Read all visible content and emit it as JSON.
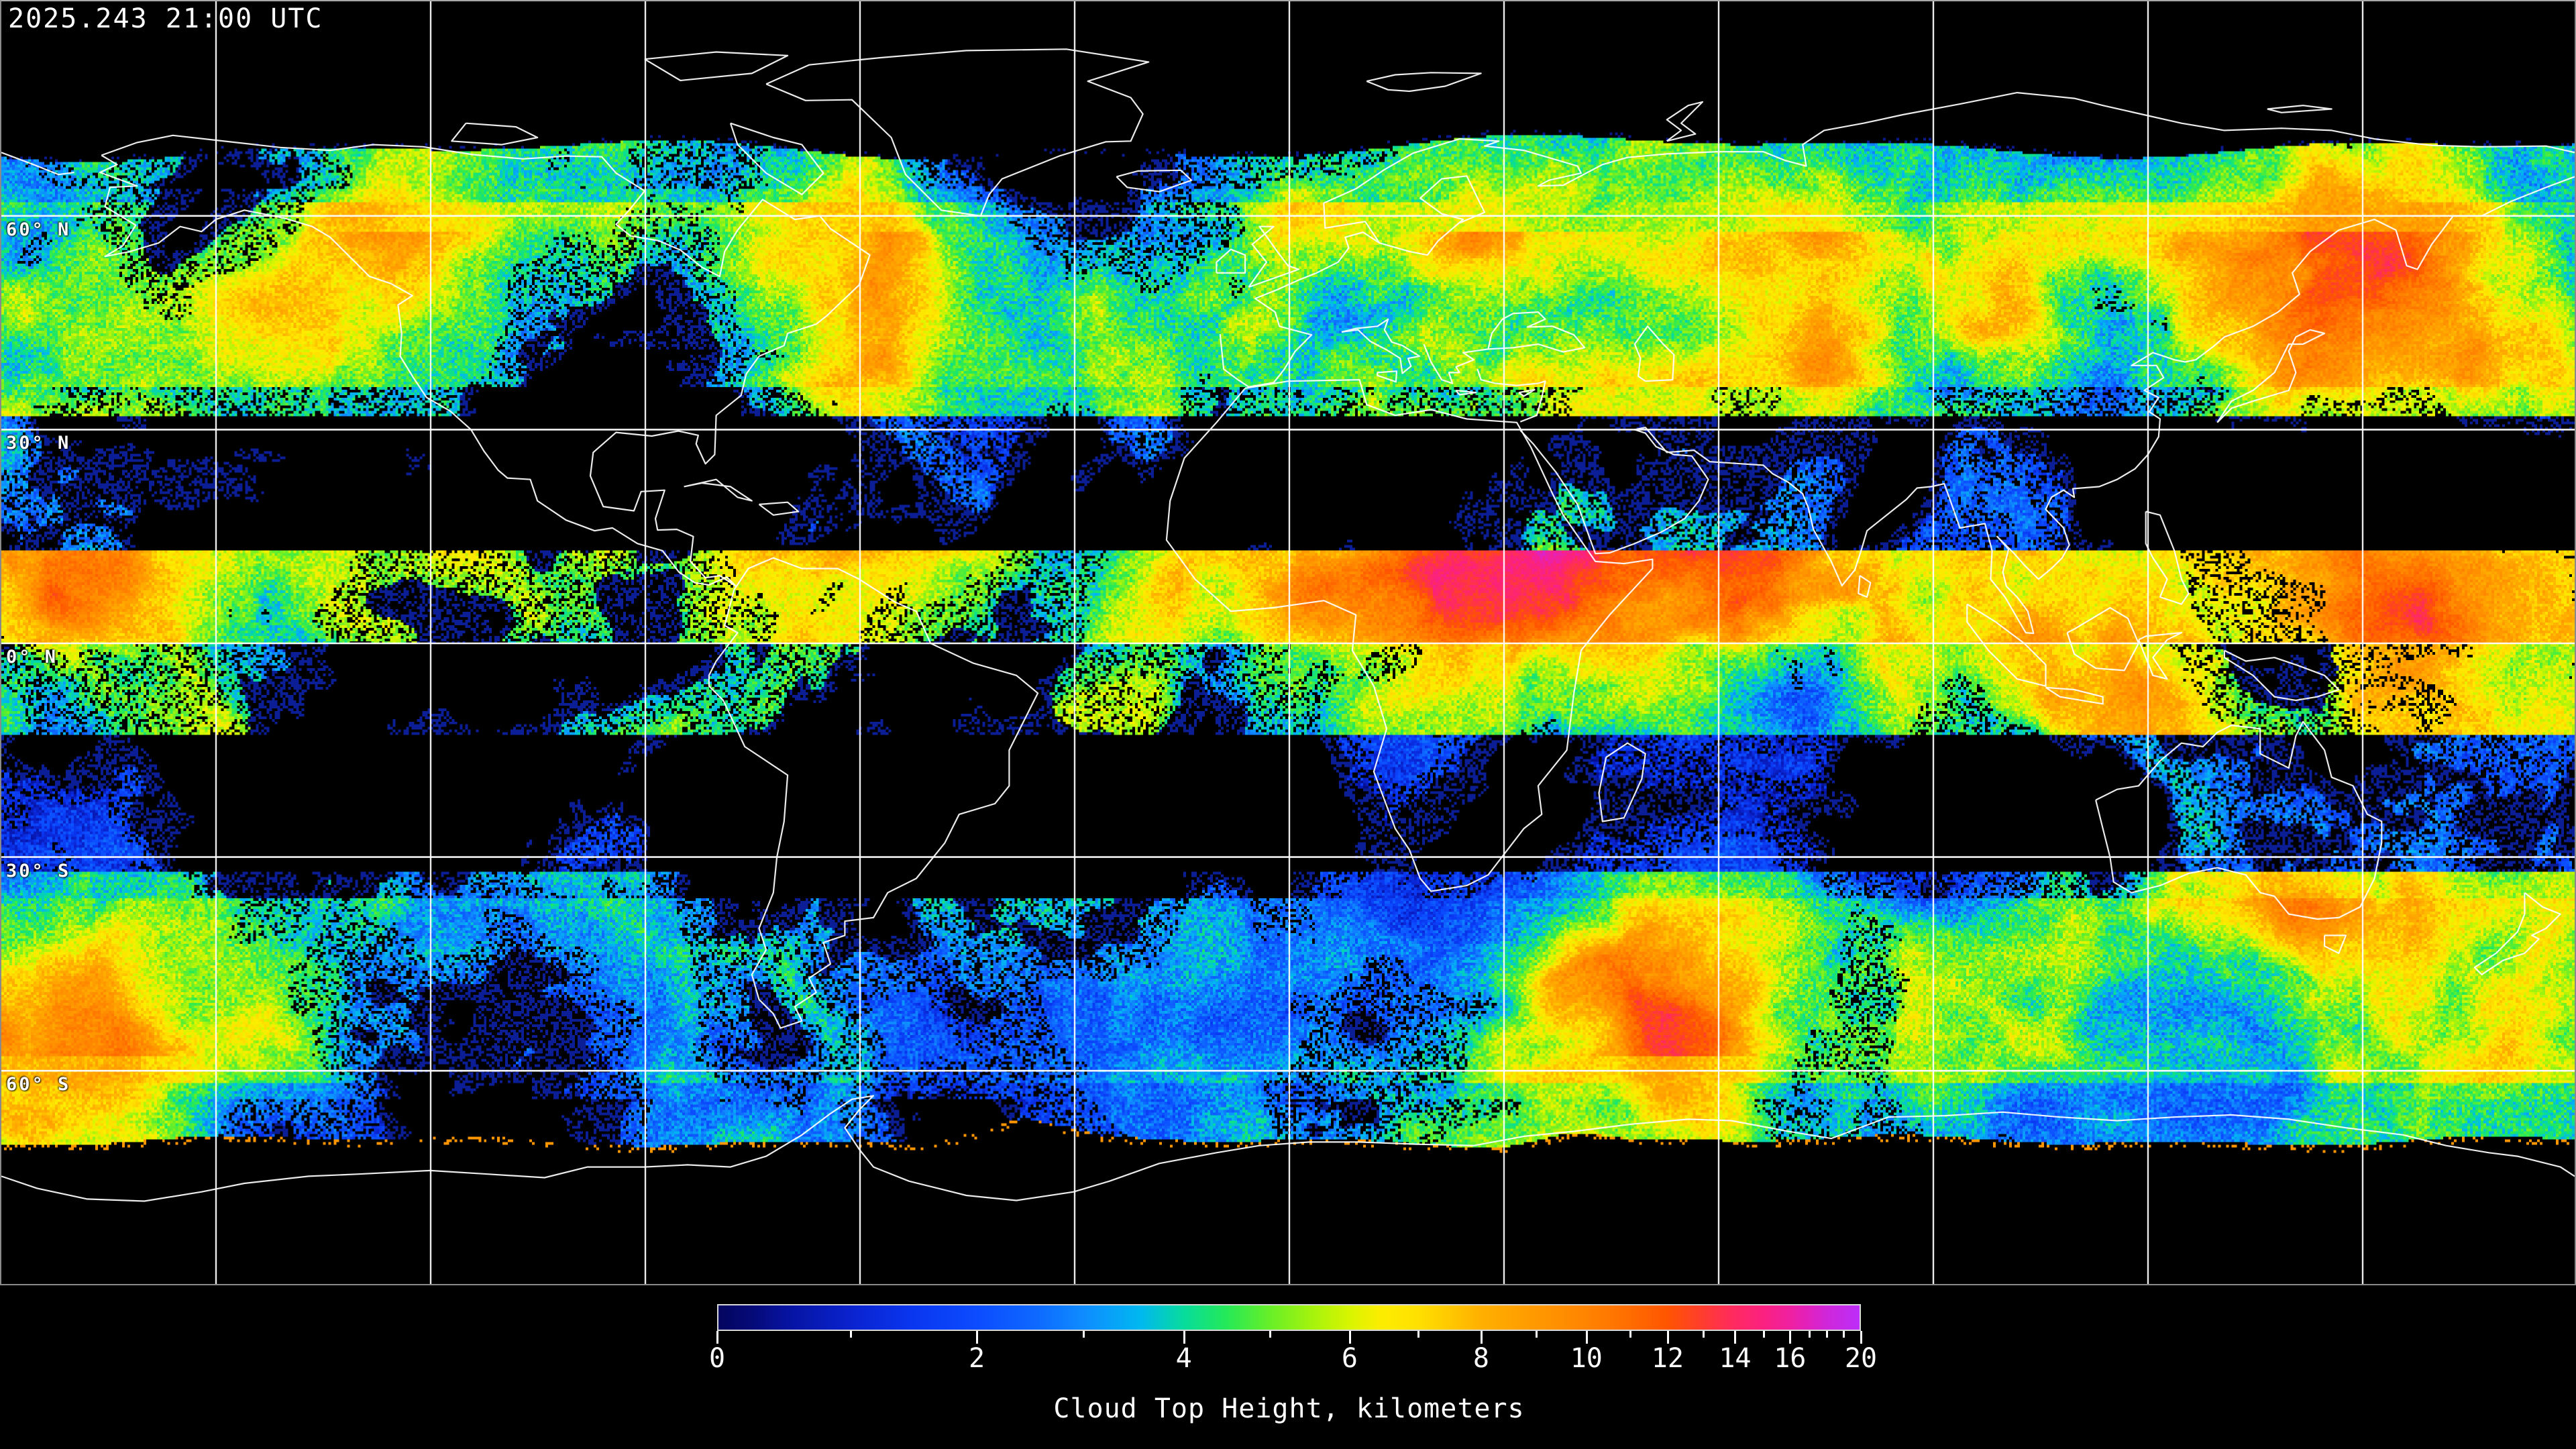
{
  "header": {
    "timestamp": "2025.243 21:00 UTC"
  },
  "map": {
    "projection": "equirectangular",
    "latitude_labels": [
      {
        "label": "60° N",
        "lat": 60
      },
      {
        "label": "30° N",
        "lat": 30
      },
      {
        "label": "0° N",
        "lat": 0
      },
      {
        "label": "30° S",
        "lat": -30
      },
      {
        "label": "60° S",
        "lat": -60
      }
    ],
    "lon_gridline_spacing_deg": 30,
    "lat_gridline_spacing_deg": 30,
    "grid_color": "#ffffff",
    "coastline_color": "#ffffff",
    "background_color": "#000000"
  },
  "colorbar": {
    "caption": "Cloud Top Height, kilometers",
    "min_km": 0,
    "max_km": 20,
    "scale": "linear-in-pressure",
    "major_ticks": [
      {
        "value": 0,
        "label": "0"
      },
      {
        "value": 2,
        "label": "2"
      },
      {
        "value": 4,
        "label": "4"
      },
      {
        "value": 6,
        "label": "6"
      },
      {
        "value": 8,
        "label": "8"
      },
      {
        "value": 10,
        "label": "10"
      },
      {
        "value": 12,
        "label": "12"
      },
      {
        "value": 14,
        "label": "14"
      },
      {
        "value": 16,
        "label": "16"
      },
      {
        "value": 20,
        "label": "20"
      }
    ],
    "minor_tick_values": [
      1,
      3,
      5,
      7,
      9,
      11,
      13,
      15,
      17,
      18,
      19
    ],
    "height_fraction": {
      "0": 0.0,
      "1": 0.117,
      "2": 0.227,
      "3": 0.32,
      "4": 0.408,
      "5": 0.483,
      "6": 0.553,
      "7": 0.613,
      "8": 0.668,
      "9": 0.716,
      "10": 0.76,
      "11": 0.798,
      "12": 0.831,
      "13": 0.862,
      "14": 0.89,
      "15": 0.915,
      "16": 0.938,
      "17": 0.955,
      "18": 0.97,
      "19": 0.985,
      "20": 1.0
    },
    "gradient_stops": [
      {
        "f": 0.0,
        "c": "#04055f"
      },
      {
        "f": 0.03,
        "c": "#050a78"
      },
      {
        "f": 0.06,
        "c": "#0613a0"
      },
      {
        "f": 0.117,
        "c": "#0a23cf"
      },
      {
        "f": 0.17,
        "c": "#0936ef"
      },
      {
        "f": 0.227,
        "c": "#0c4cff"
      },
      {
        "f": 0.28,
        "c": "#0e6aff"
      },
      {
        "f": 0.32,
        "c": "#0f8cff"
      },
      {
        "f": 0.37,
        "c": "#00b8f0"
      },
      {
        "f": 0.408,
        "c": "#07dc9c"
      },
      {
        "f": 0.445,
        "c": "#25e958"
      },
      {
        "f": 0.483,
        "c": "#67ef28"
      },
      {
        "f": 0.52,
        "c": "#a5f30d"
      },
      {
        "f": 0.553,
        "c": "#d8f500"
      },
      {
        "f": 0.58,
        "c": "#fced00"
      },
      {
        "f": 0.613,
        "c": "#ffe000"
      },
      {
        "f": 0.64,
        "c": "#ffc900"
      },
      {
        "f": 0.668,
        "c": "#ffb000"
      },
      {
        "f": 0.716,
        "c": "#ff9900"
      },
      {
        "f": 0.76,
        "c": "#ff8400"
      },
      {
        "f": 0.798,
        "c": "#ff6d00"
      },
      {
        "f": 0.831,
        "c": "#ff5500"
      },
      {
        "f": 0.862,
        "c": "#ff3d2e"
      },
      {
        "f": 0.89,
        "c": "#ff2a60"
      },
      {
        "f": 0.915,
        "c": "#fb2180"
      },
      {
        "f": 0.938,
        "c": "#f0219f"
      },
      {
        "f": 0.955,
        "c": "#e121bd"
      },
      {
        "f": 0.97,
        "c": "#d026d8"
      },
      {
        "f": 0.985,
        "c": "#c62ae8"
      },
      {
        "f": 1.0,
        "c": "#bc2ef8"
      }
    ]
  },
  "chart_data": {
    "type": "heatmap",
    "title": "2025.243 21:00 UTC",
    "colorbar_label": "Cloud Top Height, kilometers",
    "value_range_km": [
      0,
      20
    ],
    "colorbar_tick_values": [
      0,
      2,
      4,
      6,
      8,
      10,
      12,
      14,
      16,
      20
    ],
    "colorbar_minor_tick_values": [
      1,
      3,
      5,
      7,
      9,
      11,
      13,
      15,
      17,
      18,
      19
    ],
    "colorbar_scale": "linear-in-pressure",
    "lat_gridlines_deg": [
      60,
      30,
      0,
      -30,
      -60
    ],
    "lon_gridline_spacing_deg": 30,
    "projection": "equirectangular",
    "data_coverage_lat_deg": [
      -70,
      70
    ],
    "no_data_color": "#000000",
    "legend_position": "bottom-center"
  }
}
